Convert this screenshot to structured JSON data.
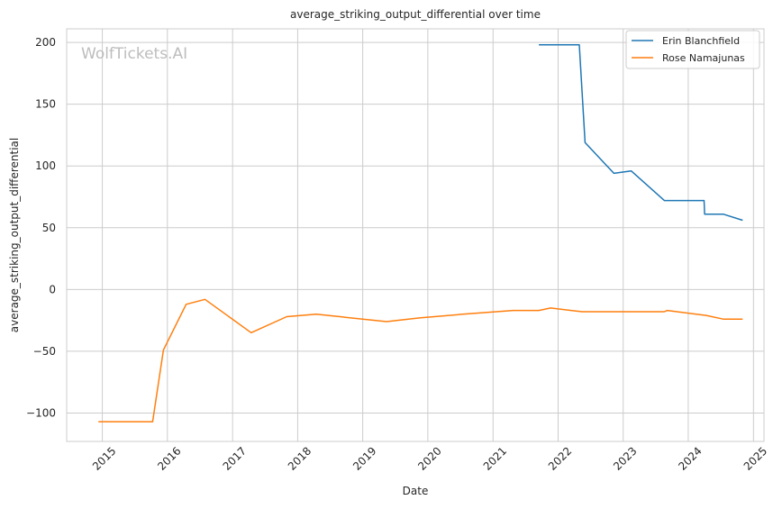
{
  "chart_data": {
    "type": "line",
    "title": "average_striking_output_differential over time",
    "xlabel": "Date",
    "ylabel": "average_striking_output_differential",
    "watermark": "WolfTickets.AI",
    "x_axis": {
      "scale": "time",
      "range": [
        "2014-06-15",
        "2025-03-01"
      ],
      "ticks": [
        "2015",
        "2016",
        "2017",
        "2018",
        "2019",
        "2020",
        "2021",
        "2022",
        "2023",
        "2024",
        "2025"
      ]
    },
    "y_axis": {
      "range": [
        -123,
        211
      ],
      "ticks": [
        "200",
        "150",
        "100",
        "50",
        "0",
        "−50",
        "−100"
      ],
      "tick_values": [
        200,
        150,
        100,
        50,
        0,
        -50,
        -100
      ]
    },
    "grid": true,
    "legend_position": "top-right",
    "series": [
      {
        "name": "Erin Blanchfield",
        "color": "#1f77b4",
        "points": [
          [
            "2021-09-15",
            198
          ],
          [
            "2022-04-30",
            198
          ],
          [
            "2022-06-01",
            119
          ],
          [
            "2022-11-10",
            94
          ],
          [
            "2023-02-15",
            96
          ],
          [
            "2023-08-20",
            72
          ],
          [
            "2024-03-30",
            72
          ],
          [
            "2024-04-02",
            61
          ],
          [
            "2024-07-15",
            61
          ],
          [
            "2024-11-01",
            56
          ]
        ]
      },
      {
        "name": "Rose Namajunas",
        "color": "#ff7f0e",
        "points": [
          [
            "2014-12-10",
            -107
          ],
          [
            "2015-10-10",
            -107
          ],
          [
            "2015-12-10",
            -49
          ],
          [
            "2016-04-15",
            -12
          ],
          [
            "2016-07-30",
            -8
          ],
          [
            "2017-04-15",
            -35
          ],
          [
            "2017-11-01",
            -22
          ],
          [
            "2018-04-15",
            -20
          ],
          [
            "2019-05-15",
            -26
          ],
          [
            "2019-11-15",
            -23
          ],
          [
            "2020-07-15",
            -20
          ],
          [
            "2021-04-24",
            -17
          ],
          [
            "2021-09-15",
            -17
          ],
          [
            "2021-11-20",
            -15
          ],
          [
            "2022-05-15",
            -18
          ],
          [
            "2023-08-20",
            -18
          ],
          [
            "2023-09-05",
            -17
          ],
          [
            "2024-04-10",
            -21
          ],
          [
            "2024-07-15",
            -24
          ],
          [
            "2024-11-01",
            -24
          ]
        ]
      }
    ]
  }
}
